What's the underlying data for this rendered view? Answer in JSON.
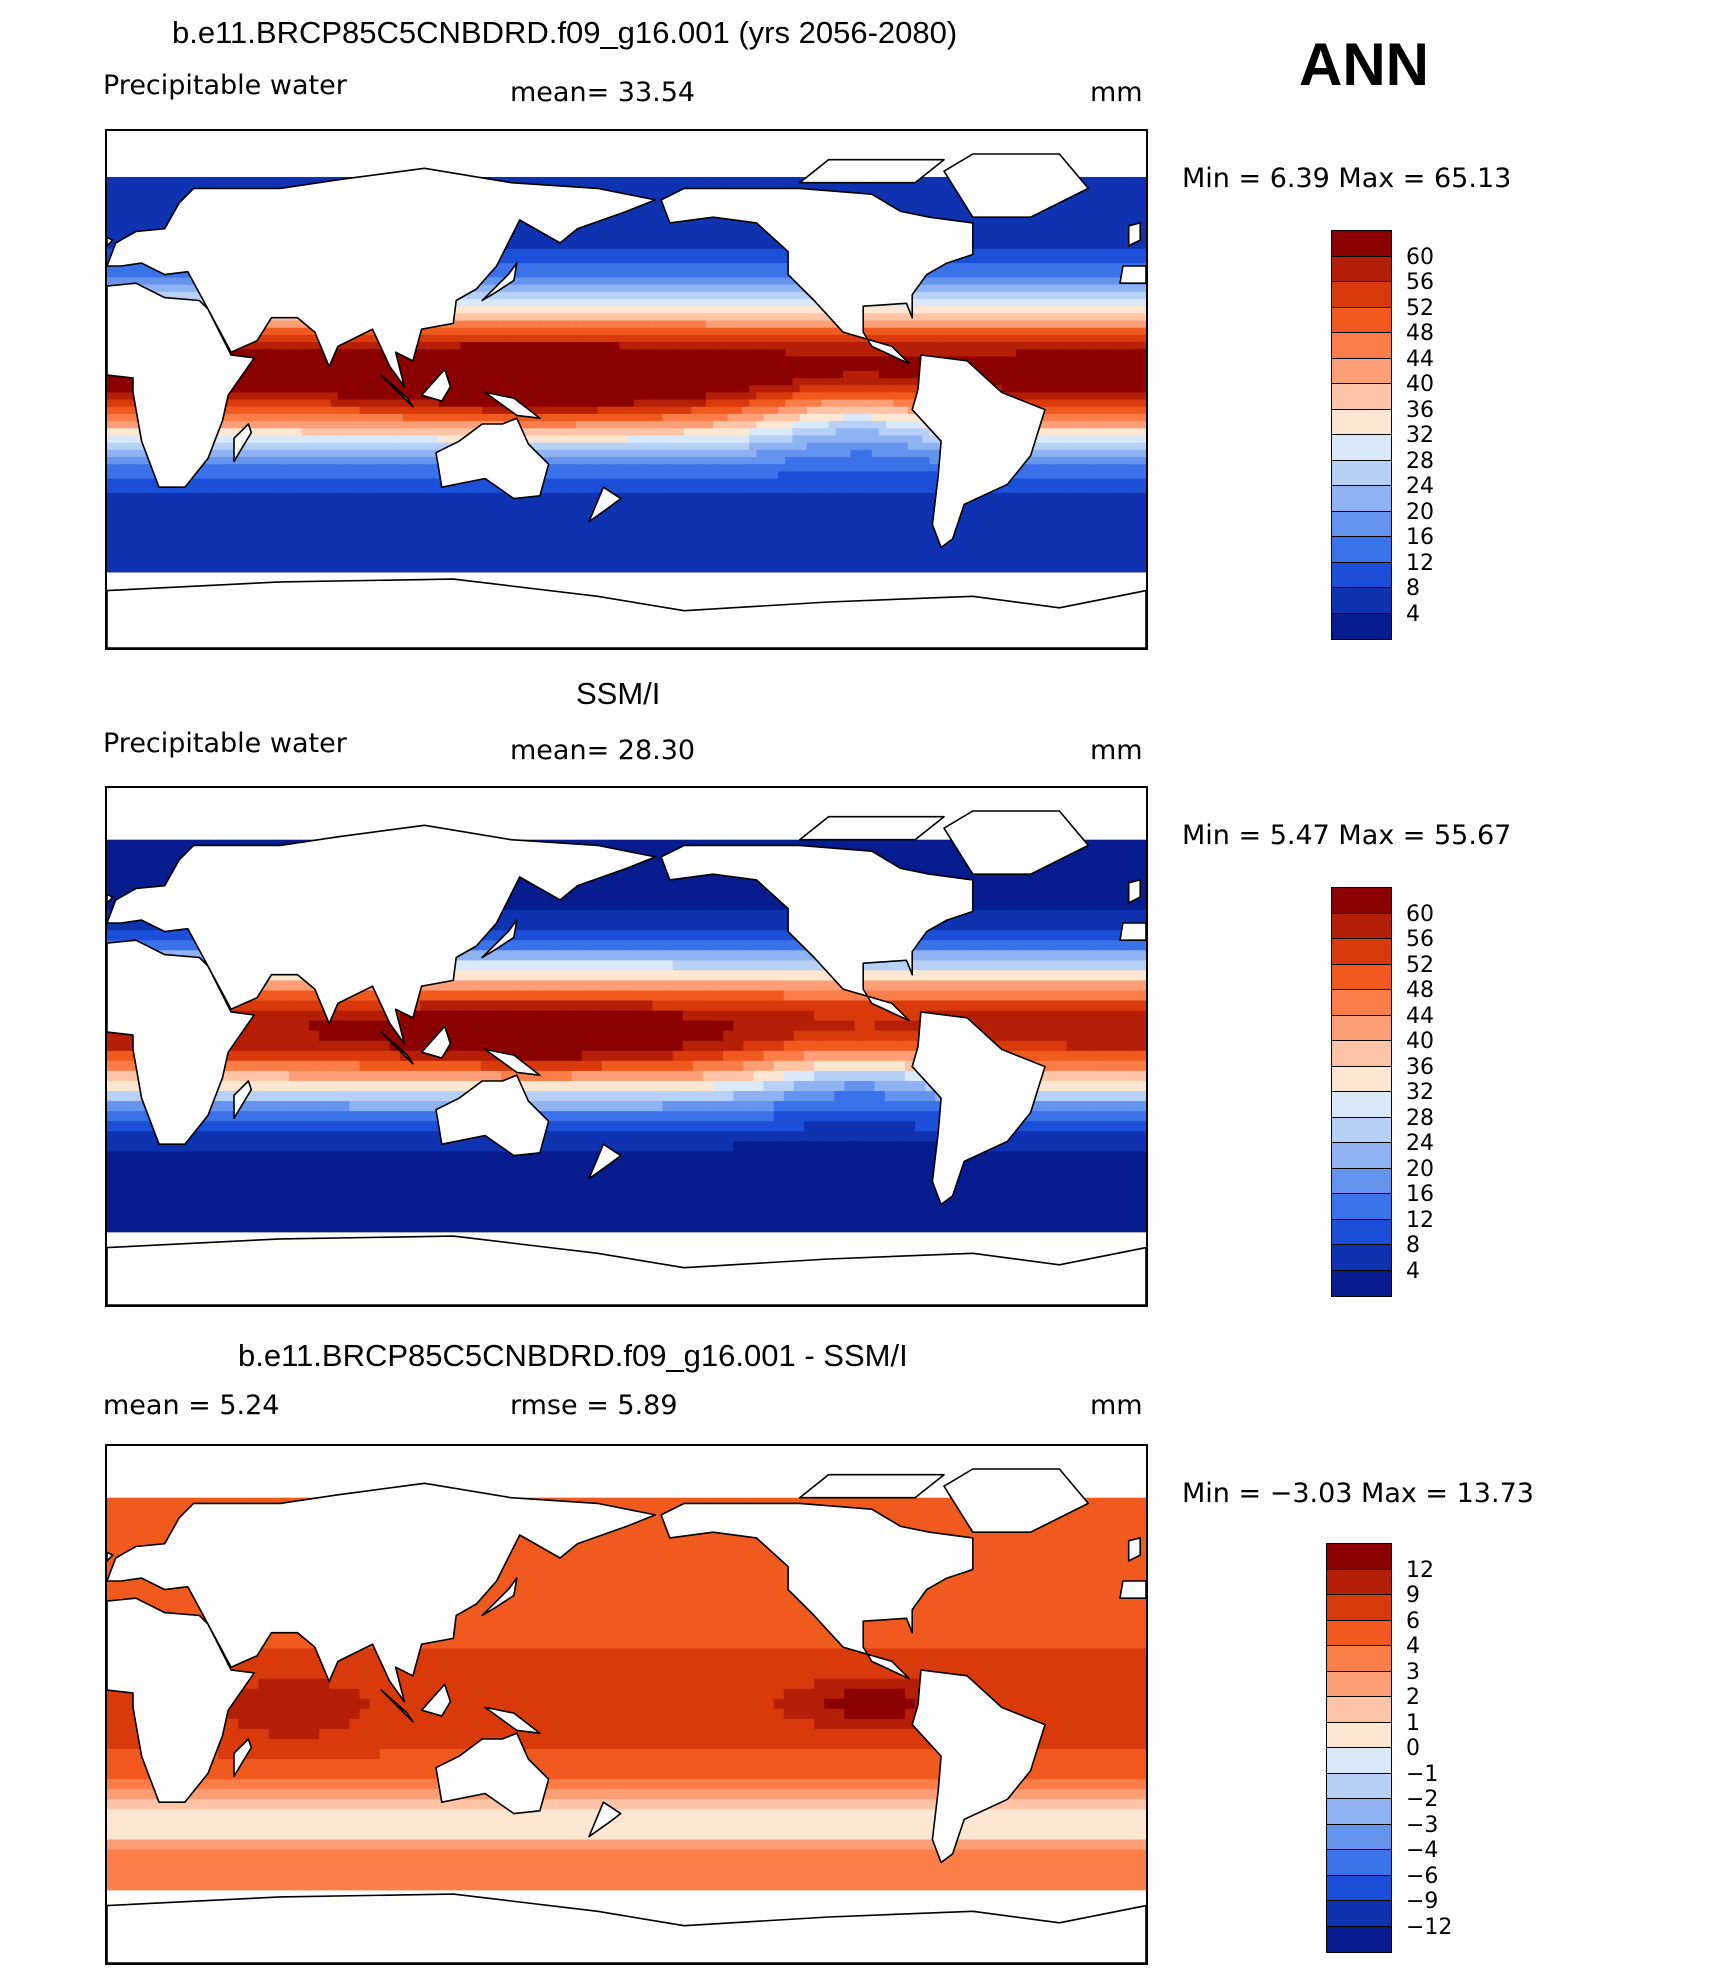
{
  "season": "ANN",
  "panels": [
    {
      "title": "b.e11.BRCP85C5CNBDRD.f09_g16.001 (yrs 2056-2080)",
      "left_label": "Precipitable water",
      "center_label": "mean=   33.54",
      "units": "mm",
      "minmax": "Min =    6.39  Max =   65.13",
      "map_kind": "model"
    },
    {
      "title": "SSM/I",
      "left_label": "Precipitable water",
      "center_label": "mean=   28.30",
      "units": "mm",
      "minmax": "Min =    5.47  Max =   55.67",
      "map_kind": "obs"
    },
    {
      "title": "b.e11.BRCP85C5CNBDRD.f09_g16.001 - SSM/I",
      "left_label": "mean =     5.24",
      "center_label": "rmse =     5.89",
      "units": "mm",
      "minmax": "Min =   −3.03  Max =   13.73",
      "map_kind": "diff"
    }
  ],
  "colorbars": [
    {
      "labels": [
        "60",
        "56",
        "52",
        "48",
        "44",
        "40",
        "36",
        "32",
        "28",
        "24",
        "20",
        "16",
        "12",
        "8",
        "4"
      ],
      "colors": [
        "#8b0000",
        "#b51e07",
        "#d93a0b",
        "#f05a1f",
        "#fb7d48",
        "#fc9f76",
        "#fdc5a5",
        "#fde6d2",
        "#d9e9f9",
        "#b6d0f6",
        "#8fb3f2",
        "#6594ef",
        "#3a72ea",
        "#1c4fd8",
        "#0f33b0",
        "#071c8e"
      ]
    },
    {
      "labels": [
        "60",
        "56",
        "52",
        "48",
        "44",
        "40",
        "36",
        "32",
        "28",
        "24",
        "20",
        "16",
        "12",
        "8",
        "4"
      ],
      "colors": [
        "#8b0000",
        "#b51e07",
        "#d93a0b",
        "#f05a1f",
        "#fb7d48",
        "#fc9f76",
        "#fdc5a5",
        "#fde6d2",
        "#d9e9f9",
        "#b6d0f6",
        "#8fb3f2",
        "#6594ef",
        "#3a72ea",
        "#1c4fd8",
        "#0f33b0",
        "#071c8e"
      ]
    },
    {
      "labels": [
        "12",
        "9",
        "6",
        "4",
        "3",
        "2",
        "1",
        "0",
        "−1",
        "−2",
        "−3",
        "−4",
        "−6",
        "−9",
        "−12"
      ],
      "colors": [
        "#8b0000",
        "#b51e07",
        "#d93a0b",
        "#f05a1f",
        "#fb7d48",
        "#fc9f76",
        "#fdc5a5",
        "#fde6d2",
        "#d9e9f9",
        "#b6d0f6",
        "#8fb3f2",
        "#6594ef",
        "#3a72ea",
        "#1c4fd8",
        "#0f33b0",
        "#071c8e"
      ]
    }
  ]
}
